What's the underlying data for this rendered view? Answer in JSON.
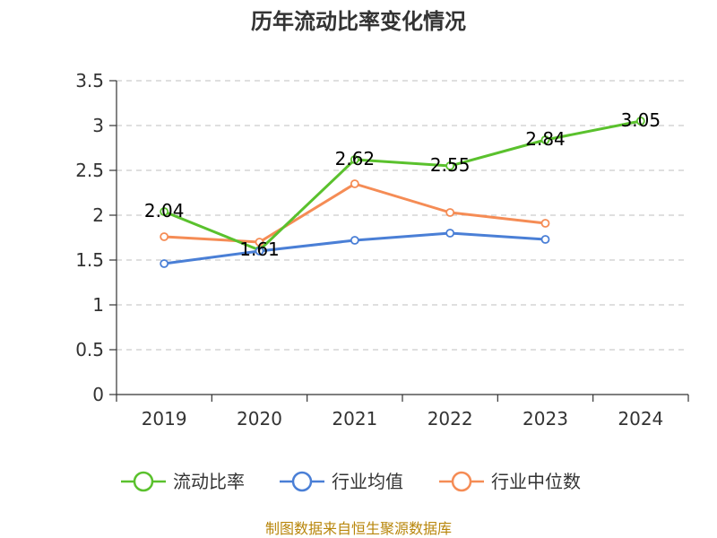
{
  "chart_data": {
    "type": "line",
    "title": "历年流动比率变化情况",
    "categories": [
      "2019",
      "2020",
      "2021",
      "2022",
      "2023",
      "2024"
    ],
    "ylim": [
      0,
      3.5
    ],
    "yticks": [
      "0",
      "0.5",
      "1",
      "1.5",
      "2",
      "2.5",
      "3",
      "3.5"
    ],
    "grid": true,
    "legend_position": "bottom",
    "series": [
      {
        "name": "流动比率",
        "color": "#5ac12d",
        "values": [
          2.04,
          1.61,
          2.62,
          2.55,
          2.84,
          3.05
        ],
        "labels": [
          "2.04",
          "1.61",
          "2.62",
          "2.55",
          "2.84",
          "3.05"
        ]
      },
      {
        "name": "行业均值",
        "color": "#4a7fd6",
        "values": [
          1.46,
          1.6,
          1.72,
          1.8,
          1.73,
          null
        ]
      },
      {
        "name": "行业中位数",
        "color": "#f58c55",
        "values": [
          1.76,
          1.7,
          2.35,
          2.03,
          1.91,
          null
        ]
      }
    ]
  },
  "source": "制图数据来自恒生聚源数据库"
}
